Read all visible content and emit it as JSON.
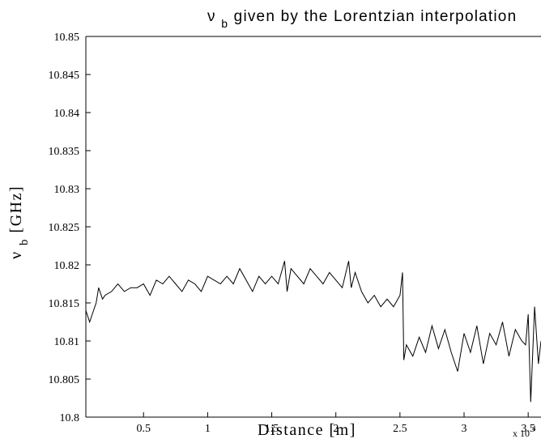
{
  "chart_data": {
    "type": "line",
    "title": "ν_b given by the Lorentzian interpolation",
    "title_main": "ν",
    "title_sub": "b",
    "title_rest": " given by the Lorentzian interpolation",
    "xlabel": "Distance [m]",
    "ylabel_main": "ν",
    "ylabel_sub": "b",
    "ylabel_rest": " [GHz]",
    "x_multiplier_text": "x 10",
    "x_multiplier_exponent": "4",
    "xlim": [
      0.05,
      3.6
    ],
    "ylim": [
      10.8,
      10.85
    ],
    "x_ticks": [
      {
        "value": 0.5,
        "label": "0.5"
      },
      {
        "value": 1,
        "label": "1"
      },
      {
        "value": 1.5,
        "label": "1.5"
      },
      {
        "value": 2,
        "label": "2"
      },
      {
        "value": 2.5,
        "label": "2.5"
      },
      {
        "value": 3,
        "label": "3"
      },
      {
        "value": 3.5,
        "label": "3.5"
      }
    ],
    "y_ticks": [
      {
        "value": 10.8,
        "label": "10.8"
      },
      {
        "value": 10.805,
        "label": "10.805"
      },
      {
        "value": 10.81,
        "label": "10.81"
      },
      {
        "value": 10.815,
        "label": "10.815"
      },
      {
        "value": 10.82,
        "label": "10.82"
      },
      {
        "value": 10.825,
        "label": "10.825"
      },
      {
        "value": 10.83,
        "label": "10.83"
      },
      {
        "value": 10.835,
        "label": "10.835"
      },
      {
        "value": 10.84,
        "label": "10.84"
      },
      {
        "value": 10.845,
        "label": "10.845"
      },
      {
        "value": 10.85,
        "label": "10.85"
      }
    ],
    "grid": false,
    "line_color": "#000000",
    "series": [
      {
        "x": [
          0.05,
          0.08,
          0.1,
          0.13,
          0.15,
          0.18,
          0.2,
          0.25,
          0.3,
          0.35,
          0.4,
          0.45,
          0.5,
          0.55,
          0.6,
          0.65,
          0.7,
          0.75,
          0.8,
          0.85,
          0.9,
          0.95,
          1.0,
          1.05,
          1.1,
          1.15,
          1.2,
          1.25,
          1.3,
          1.35,
          1.4,
          1.45,
          1.5,
          1.55,
          1.6,
          1.62,
          1.65,
          1.7,
          1.75,
          1.8,
          1.85,
          1.9,
          1.95,
          2.0,
          2.05,
          2.1,
          2.12,
          2.15,
          2.2,
          2.25,
          2.3,
          2.35,
          2.4,
          2.45,
          2.5,
          2.52,
          2.53,
          2.55,
          2.6,
          2.65,
          2.7,
          2.75,
          2.8,
          2.85,
          2.9,
          2.95,
          3.0,
          3.05,
          3.1,
          3.15,
          3.2,
          3.25,
          3.3,
          3.35,
          3.4,
          3.45,
          3.48,
          3.5,
          3.52,
          3.55,
          3.58,
          3.6
        ],
        "y": [
          10.814,
          10.8125,
          10.8135,
          10.815,
          10.817,
          10.8155,
          10.816,
          10.8165,
          10.8175,
          10.8165,
          10.817,
          10.817,
          10.8175,
          10.816,
          10.818,
          10.8175,
          10.8185,
          10.8175,
          10.8165,
          10.818,
          10.8175,
          10.8165,
          10.8185,
          10.818,
          10.8175,
          10.8185,
          10.8175,
          10.8195,
          10.818,
          10.8165,
          10.8185,
          10.8175,
          10.8185,
          10.8175,
          10.8205,
          10.8165,
          10.8195,
          10.8185,
          10.8175,
          10.8195,
          10.8185,
          10.8175,
          10.819,
          10.818,
          10.817,
          10.8205,
          10.817,
          10.819,
          10.8165,
          10.815,
          10.816,
          10.8145,
          10.8155,
          10.8145,
          10.816,
          10.819,
          10.8075,
          10.8095,
          10.808,
          10.8105,
          10.8085,
          10.812,
          10.809,
          10.8115,
          10.8085,
          10.806,
          10.811,
          10.8085,
          10.812,
          10.807,
          10.811,
          10.8095,
          10.8125,
          10.808,
          10.8115,
          10.81,
          10.8095,
          10.8135,
          10.802,
          10.8145,
          10.807,
          10.81
        ]
      }
    ]
  }
}
